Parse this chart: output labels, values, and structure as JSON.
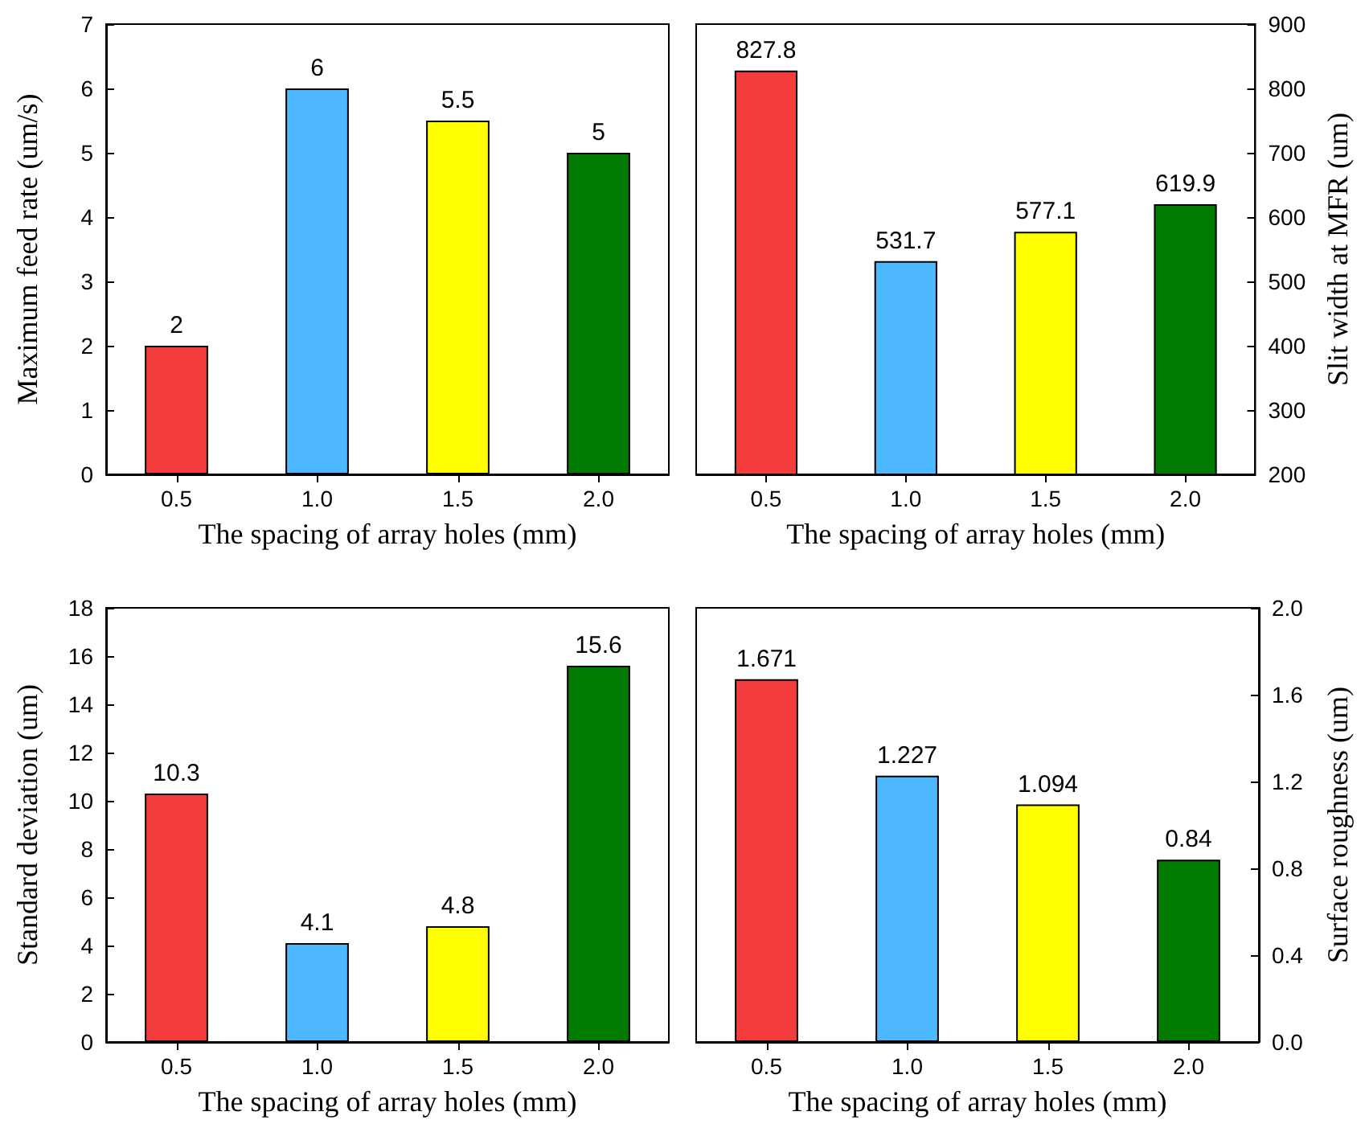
{
  "chart_data": [
    {
      "type": "bar",
      "categories": [
        "0.5",
        "1.0",
        "1.5",
        "2.0"
      ],
      "values": [
        2,
        6,
        5.5,
        5
      ],
      "colors": [
        "#f53c3c",
        "#4db8ff",
        "#ffff00",
        "#007a00"
      ],
      "xlabel": "The spacing of array holes (mm)",
      "ylabel": "Maximum feed rate (um/s)",
      "ylim": [
        0,
        7
      ],
      "yticks": [
        0,
        1,
        2,
        3,
        4,
        5,
        6,
        7
      ],
      "data_labels": true
    },
    {
      "type": "bar",
      "categories": [
        "0.5",
        "1.0",
        "1.5",
        "2.0"
      ],
      "series": [
        {
          "axis": "y2",
          "values": [
            827.8,
            531.7,
            577.1,
            619.9
          ],
          "colors": [
            "#f53c3c",
            "#4db8ff",
            "#ffff00",
            "#007a00"
          ]
        }
      ],
      "xlabel": "The spacing of array holes (mm)",
      "y2label": "Slit width at MFR (um)",
      "y2lim": [
        200,
        900
      ],
      "y2ticks": [
        200,
        300,
        400,
        500,
        600,
        700,
        800,
        900
      ],
      "data_labels": true
    },
    {
      "type": "bar",
      "categories": [
        "0.5",
        "1.0",
        "1.5",
        "2.0"
      ],
      "values": [
        10.3,
        4.1,
        4.8,
        15.6
      ],
      "colors": [
        "#f53c3c",
        "#4db8ff",
        "#ffff00",
        "#007a00"
      ],
      "xlabel": "The spacing of array holes (mm)",
      "ylabel": "Standard deviation (um)",
      "ylim": [
        0,
        18
      ],
      "yticks": [
        0,
        2,
        4,
        6,
        8,
        10,
        12,
        14,
        16,
        18
      ],
      "data_labels": true
    },
    {
      "type": "bar",
      "categories": [
        "0.5",
        "1.0",
        "1.5",
        "2.0"
      ],
      "series": [
        {
          "axis": "y2",
          "values": [
            1.671,
            1.227,
            1.094,
            0.84
          ],
          "colors": [
            "#f53c3c",
            "#4db8ff",
            "#ffff00",
            "#007a00"
          ]
        }
      ],
      "xlabel": "The spacing of array holes (mm)",
      "y2label": "Surface roughness (um)",
      "y2lim": [
        0,
        2
      ],
      "y2ticks": [
        {
          "value": 0,
          "label": "0.0"
        },
        {
          "value": 0.4,
          "label": "0.4"
        },
        {
          "value": 0.8,
          "label": "0.8"
        },
        {
          "value": 1.2,
          "label": "1.2"
        },
        {
          "value": 1.6,
          "label": "1.6"
        },
        {
          "value": 2,
          "label": "2.0"
        }
      ],
      "data_labels": true
    }
  ]
}
